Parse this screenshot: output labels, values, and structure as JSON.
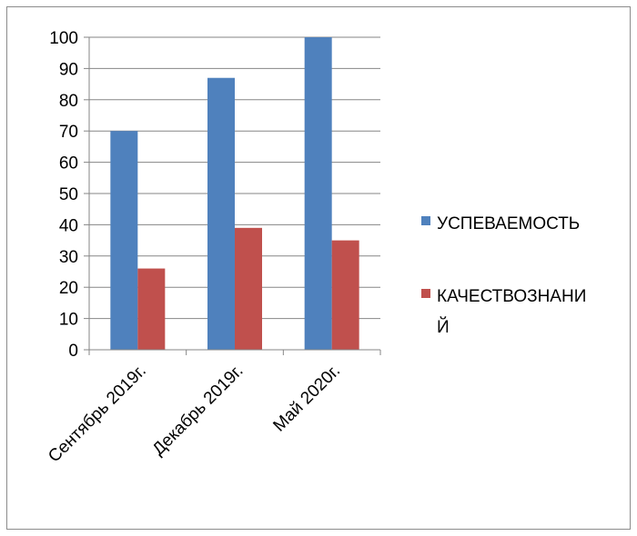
{
  "chart_data": {
    "type": "bar",
    "categories": [
      "Сентябрь 2019г.",
      "Декабрь 2019г.",
      "Май 2020г."
    ],
    "series": [
      {
        "name": "УСПЕВАЕМОСТЬ",
        "values": [
          70,
          87,
          100
        ],
        "color": "#4f81bd"
      },
      {
        "name": "КАЧЕСТВОЗНАНИЙ",
        "values": [
          26,
          39,
          35
        ],
        "color": "#c0504d"
      }
    ],
    "title": "",
    "xlabel": "",
    "ylabel": "",
    "ylim": [
      0,
      100
    ],
    "yticks": [
      0,
      10,
      20,
      30,
      40,
      50,
      60,
      70,
      80,
      90,
      100
    ],
    "grid": true,
    "legend": "right"
  }
}
